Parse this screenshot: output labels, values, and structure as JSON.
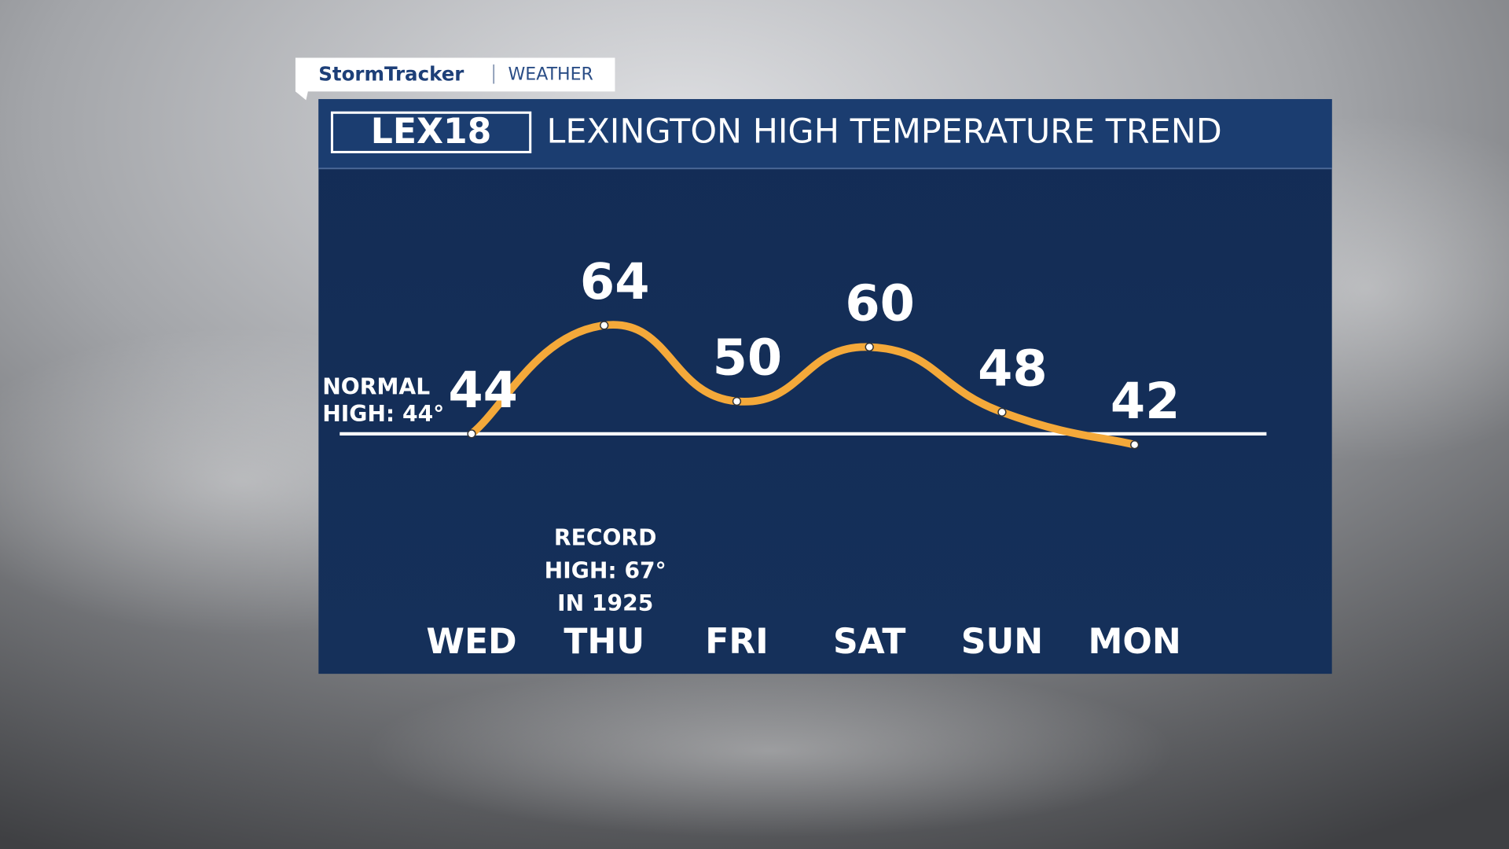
{
  "brand": {
    "name": "StormTracker",
    "section": "WEATHER",
    "station": "LEX18"
  },
  "chart_data": {
    "type": "line",
    "title": "LEXINGTON HIGH TEMPERATURE TREND",
    "categories": [
      "WED",
      "THU",
      "FRI",
      "SAT",
      "SUN",
      "MON"
    ],
    "values": [
      44,
      64,
      50,
      60,
      48,
      42
    ],
    "color": "#f4a93a",
    "normal_high": 44,
    "normal_label": [
      "NORMAL",
      "HIGH: 44°"
    ],
    "record_label": [
      "RECORD",
      "HIGH: 67°",
      "IN 1925"
    ]
  }
}
